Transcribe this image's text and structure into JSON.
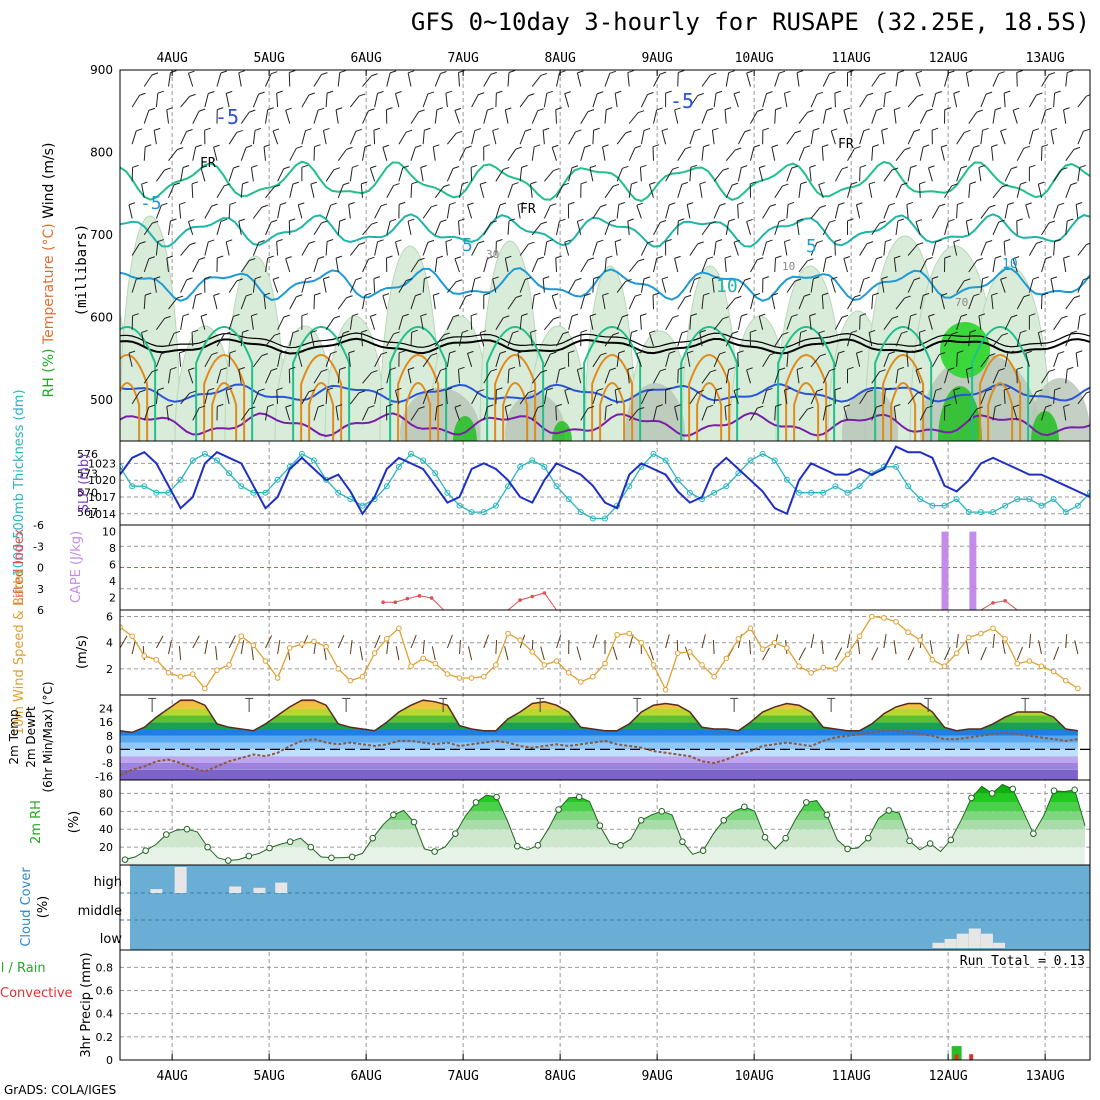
{
  "header": {
    "title": "GFS 0~10day 3-hourly for RUSAPE (32.25E, 18.5S)",
    "credit": "GrADS: COLA/IGES"
  },
  "colors": {
    "frame": "#000000",
    "grid": "#9a9a9a",
    "temp_cold": "#7a1fa8",
    "temp_blue": "#2a55d6",
    "temp_cyan": "#1f9ad6",
    "temp_teal": "#1fb5a8",
    "temp_green": "#1fc08a",
    "temp_orange": "#e08a1a",
    "rh_light": "#d9ecd9",
    "rh_mid": "#9ccf9c",
    "rh_dark": "#22c022",
    "slp": "#1f2fc4",
    "thickness": "#2ab5bf",
    "cape": "#c58be8",
    "lifted": "#e05050",
    "wind10m": "#e0a030",
    "barb": "#5a3a1a",
    "cloud_bg": "#6aaed6",
    "cloud": "#e6e6e6",
    "precip_total": "#22c022",
    "precip_conv": "#e03030"
  },
  "chart_data": [
    {
      "type": "contour",
      "panel": "upper-air",
      "x_dates": [
        "4AUG",
        "5AUG",
        "6AUG",
        "7AUG",
        "8AUG",
        "9AUG",
        "10AUG",
        "11AUG",
        "12AUG",
        "13AUG"
      ],
      "y_ticks": [
        500,
        600,
        700,
        800,
        900
      ],
      "y_label_parts": [
        "RH (%)",
        "Temperature (°C)",
        "Wind (m/s)"
      ],
      "y_label_units": "(millibars)",
      "contour_labels": [
        "-5",
        "-5",
        "FR",
        "FR",
        "FR",
        "-5",
        "5",
        "5",
        "10",
        "30",
        "10",
        "70",
        "10"
      ],
      "ylim": [
        450,
        900
      ]
    },
    {
      "type": "line",
      "panel": "pressure",
      "y_left_label": "1000-500mb Thickness (dm)",
      "y_left_ticks": [
        "567",
        "570",
        "573",
        "576"
      ],
      "y_right_label": "SLP (mb)",
      "y_right_ticks": [
        "1014",
        "1017",
        "1020",
        "1023"
      ],
      "slp_series": [
        1021,
        1024,
        1025,
        1023,
        1019,
        1015,
        1017,
        1023,
        1025,
        1024,
        1023,
        1019,
        1015,
        1017,
        1022,
        1024,
        1022,
        1020,
        1021,
        1018,
        1014,
        1017,
        1022,
        1024,
        1023,
        1022,
        1019,
        1016,
        1017,
        1022,
        1023,
        1022,
        1020,
        1017,
        1016,
        1020,
        1023,
        1022,
        1021,
        1019,
        1016,
        1015,
        1021,
        1023,
        1022,
        1021,
        1018,
        1016,
        1017,
        1022,
        1024,
        1022,
        1020,
        1018,
        1015,
        1014,
        1020,
        1023,
        1022,
        1021,
        1021,
        1022,
        1021,
        1022,
        1026,
        1025,
        1025,
        1024,
        1019,
        1018,
        1020,
        1023,
        1024,
        1023,
        1022,
        1021,
        1021,
        1020,
        1019,
        1018,
        1017
      ],
      "thickness_series": [
        574,
        571,
        571,
        570,
        570,
        572,
        575,
        576,
        575,
        573,
        571,
        570,
        570,
        572,
        574,
        576,
        575,
        572,
        570,
        569,
        568,
        569,
        571,
        574,
        576,
        575,
        573,
        570,
        568,
        567,
        567,
        568,
        571,
        574,
        575,
        574,
        571,
        569,
        567,
        566,
        566,
        568,
        571,
        574,
        576,
        575,
        572,
        570,
        569,
        570,
        571,
        573,
        575,
        576,
        575,
        572,
        570,
        570,
        570,
        571,
        570,
        571,
        573,
        574,
        574,
        571,
        569,
        568,
        568,
        569,
        567,
        567,
        567,
        568,
        569,
        569,
        568,
        569,
        567,
        568,
        570
      ]
    },
    {
      "type": "line",
      "panel": "stability",
      "y_left_label": "Lifted Index",
      "y_left_ticks": [
        "-6",
        "-3",
        "0",
        "3",
        "6"
      ],
      "y_right_label": "CAPE (J/kg)",
      "y_right_ticks": [
        "2",
        "4",
        "6",
        "8",
        "10"
      ],
      "cape_spikes": [
        {
          "x": 68.0,
          "value": 10
        },
        {
          "x": 70.3,
          "value": 10
        }
      ],
      "lifted_index": [
        {
          "x": 21.7,
          "value": 4.9
        },
        {
          "x": 22.7,
          "value": 4.9
        },
        {
          "x": 23.7,
          "value": 4.4
        },
        {
          "x": 24.7,
          "value": 4.0
        },
        {
          "x": 25.7,
          "value": 4.3
        },
        {
          "x": 26.7,
          "value": 6.0
        },
        {
          "x": 32.0,
          "value": 6.0
        },
        {
          "x": 33.0,
          "value": 4.6
        },
        {
          "x": 34.0,
          "value": 4.1
        },
        {
          "x": 35.0,
          "value": 3.6
        },
        {
          "x": 36.0,
          "value": 6.0
        },
        {
          "x": 71.0,
          "value": 6.0
        },
        {
          "x": 72.0,
          "value": 5.0
        },
        {
          "x": 73.0,
          "value": 4.7
        },
        {
          "x": 74.0,
          "value": 6.0
        }
      ]
    },
    {
      "type": "line",
      "panel": "wind10m",
      "y_label_parts": [
        "10m Wind Speed & Barbs",
        "(m/s)"
      ],
      "y_ticks": [
        "2",
        "4",
        "6"
      ],
      "speed_series": [
        5.2,
        4.5,
        3.0,
        2.7,
        1.7,
        1.4,
        1.6,
        0.5,
        1.9,
        2.3,
        4.5,
        3.8,
        2.6,
        1.3,
        3.6,
        3.9,
        4.1,
        3.7,
        2.0,
        1.1,
        1.4,
        3.2,
        4.3,
        5.1,
        2.2,
        2.8,
        2.4,
        1.6,
        1.3,
        1.3,
        1.4,
        2.3,
        4.7,
        4.2,
        3.3,
        2.3,
        2.6,
        1.7,
        1.0,
        1.4,
        2.4,
        4.6,
        4.7,
        4.0,
        2.3,
        0.4,
        3.2,
        3.3,
        2.3,
        1.4,
        2.8,
        4.3,
        5.1,
        3.5,
        4.0,
        3.6,
        2.2,
        1.7,
        2.1,
        2.0,
        3.1,
        4.5,
        6.0,
        5.9,
        5.6,
        4.8,
        4.2,
        2.7,
        2.2,
        3.2,
        4.4,
        4.7,
        5.1,
        4.3,
        2.4,
        2.6,
        2.2,
        1.8,
        1.1,
        0.5
      ],
      "ylim": [
        0,
        6.5
      ]
    },
    {
      "type": "area",
      "panel": "temperature",
      "y_label_parts": [
        "2m Temp",
        "2m DewPt",
        "(6hr Min/Max) (°C)"
      ],
      "y_ticks": [
        "-16",
        "-8",
        "0",
        "8",
        "16",
        "24"
      ],
      "temp_series": [
        11,
        10,
        13,
        19,
        24,
        29,
        29,
        26,
        15,
        13,
        12,
        11,
        15,
        20,
        25,
        29,
        29,
        26,
        15,
        13,
        12,
        11,
        16,
        22,
        26,
        29,
        28,
        26,
        14,
        12,
        11,
        11,
        18,
        22,
        27,
        28,
        26,
        22,
        13,
        12,
        11,
        11,
        15,
        22,
        26,
        27,
        26,
        22,
        13,
        12,
        12,
        11,
        16,
        22,
        25,
        27,
        26,
        22,
        13,
        12,
        11,
        11,
        15,
        21,
        25,
        27,
        27,
        22,
        13,
        11,
        12,
        12,
        15,
        19,
        22,
        22,
        22,
        19,
        12,
        11
      ],
      "dewpt_series": [
        -15,
        -12,
        -10,
        -7,
        -6,
        -8,
        -11,
        -13,
        -10,
        -7,
        -5,
        -3,
        -4,
        -2,
        2,
        5,
        6,
        4,
        3,
        4,
        3,
        2,
        3,
        5,
        5,
        4,
        3,
        4,
        2,
        3,
        4,
        5,
        4,
        2,
        1,
        2,
        3,
        2,
        3,
        4,
        5,
        3,
        2,
        1,
        -1,
        -2,
        -3,
        -4,
        -7,
        -8,
        -6,
        -3,
        -1,
        2,
        3,
        4,
        3,
        2,
        5,
        7,
        8,
        9,
        10,
        11,
        11,
        10,
        9,
        8,
        6,
        6,
        7,
        8,
        9,
        10,
        9,
        8,
        7,
        6,
        5,
        6
      ],
      "ylim": [
        -18,
        32
      ]
    },
    {
      "type": "area",
      "panel": "humidity",
      "y_label_parts": [
        "2m RH",
        "(%)"
      ],
      "y_ticks": [
        "20",
        "40",
        "60",
        "80"
      ],
      "rh_series": [
        6,
        9,
        16,
        23,
        34,
        39,
        40,
        37,
        20,
        8,
        5,
        6,
        10,
        13,
        19,
        23,
        26,
        30,
        20,
        9,
        8,
        8,
        9,
        13,
        30,
        45,
        56,
        61,
        48,
        18,
        15,
        20,
        35,
        55,
        70,
        78,
        76,
        51,
        21,
        17,
        22,
        40,
        62,
        75,
        76,
        71,
        44,
        24,
        22,
        29,
        50,
        56,
        60,
        56,
        26,
        12,
        16,
        35,
        50,
        60,
        65,
        60,
        31,
        18,
        30,
        52,
        70,
        72,
        56,
        28,
        18,
        19,
        30,
        52,
        61,
        58,
        27,
        17,
        24,
        15,
        28,
        50,
        75,
        88,
        80,
        90,
        85,
        60,
        35,
        55,
        83,
        82,
        84,
        44
      ],
      "ylim": [
        0,
        95
      ]
    },
    {
      "type": "bar",
      "panel": "cloud",
      "y_label_parts": [
        "Cloud Cover",
        "(%)"
      ],
      "y_categories": [
        "high",
        "middle",
        "low"
      ],
      "high_bars": [
        {
          "x": 3.0,
          "value": 15
        },
        {
          "x": 5.0,
          "value": 100
        },
        {
          "x": 9.5,
          "value": 25
        },
        {
          "x": 11.5,
          "value": 20
        },
        {
          "x": 13.3,
          "value": 40
        }
      ],
      "low_bars": [
        {
          "x": 67.5,
          "value": 20
        },
        {
          "x": 68.5,
          "value": 35
        },
        {
          "x": 69.5,
          "value": 55
        },
        {
          "x": 70.5,
          "value": 75
        },
        {
          "x": 71.5,
          "value": 55
        },
        {
          "x": 72.5,
          "value": 20
        }
      ]
    },
    {
      "type": "bar",
      "panel": "precip",
      "y_label_parts": [
        "Total / Rain",
        "Convective",
        "3hr Precip (mm)"
      ],
      "y_ticks": [
        "0",
        "0.2",
        "0.4",
        "0.6",
        "0.8"
      ],
      "run_total": "Run Total = 0.13",
      "total_bars": [
        {
          "x": 69.0,
          "value": 0.12
        }
      ],
      "convective_bars": [
        {
          "x": 69.0,
          "value": 0.05
        },
        {
          "x": 70.2,
          "value": 0.05
        }
      ],
      "ylim": [
        0,
        0.95
      ]
    }
  ]
}
